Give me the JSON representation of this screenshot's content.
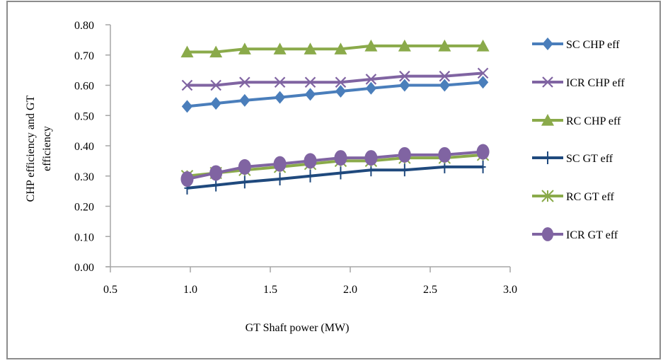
{
  "chart_data": {
    "type": "line",
    "title": "",
    "xlabel": "GT Shaft power (MW)",
    "ylabel_lines": [
      "CHP efficiency and GT",
      "efficiency"
    ],
    "xlim": [
      0.5,
      3.0
    ],
    "ylim": [
      0.0,
      0.8
    ],
    "x_ticks": [
      "0.5",
      "1.0",
      "1.5",
      "2.0",
      "2.5",
      "3.0"
    ],
    "x_tick_values": [
      0.5,
      1.0,
      1.5,
      2.0,
      2.5,
      3.0
    ],
    "y_ticks": [
      "0.00",
      "0.10",
      "0.20",
      "0.30",
      "0.40",
      "0.50",
      "0.60",
      "0.70",
      "0.80"
    ],
    "y_tick_values": [
      0.0,
      0.1,
      0.2,
      0.3,
      0.4,
      0.5,
      0.6,
      0.7,
      0.8
    ],
    "grid": false,
    "legend_position": "right",
    "x": [
      0.98,
      1.16,
      1.34,
      1.56,
      1.75,
      1.94,
      2.13,
      2.34,
      2.59,
      2.83
    ],
    "series": [
      {
        "name": "SC CHP eff",
        "color": "#4a7ebb",
        "marker": "diamond",
        "values": [
          0.53,
          0.54,
          0.55,
          0.56,
          0.57,
          0.58,
          0.59,
          0.6,
          0.6,
          0.61
        ]
      },
      {
        "name": "ICR CHP eff",
        "color": "#8064a2",
        "marker": "x",
        "values": [
          0.6,
          0.6,
          0.61,
          0.61,
          0.61,
          0.61,
          0.62,
          0.63,
          0.63,
          0.64
        ]
      },
      {
        "name": "RC CHP eff",
        "color": "#8aaa4a",
        "marker": "triangle",
        "values": [
          0.71,
          0.71,
          0.72,
          0.72,
          0.72,
          0.72,
          0.73,
          0.73,
          0.73,
          0.73
        ]
      },
      {
        "name": "SC GT eff",
        "color": "#1f497d",
        "marker": "plus",
        "values": [
          0.26,
          0.27,
          0.28,
          0.29,
          0.3,
          0.31,
          0.32,
          0.32,
          0.33,
          0.33
        ]
      },
      {
        "name": "RC GT eff",
        "color": "#8aaa4a",
        "marker": "star",
        "values": [
          0.3,
          0.31,
          0.32,
          0.33,
          0.34,
          0.35,
          0.35,
          0.36,
          0.36,
          0.37
        ]
      },
      {
        "name": "ICR GT eff",
        "color": "#8064a2",
        "marker": "circle",
        "values": [
          0.29,
          0.31,
          0.33,
          0.34,
          0.35,
          0.36,
          0.36,
          0.37,
          0.37,
          0.38
        ]
      }
    ]
  }
}
